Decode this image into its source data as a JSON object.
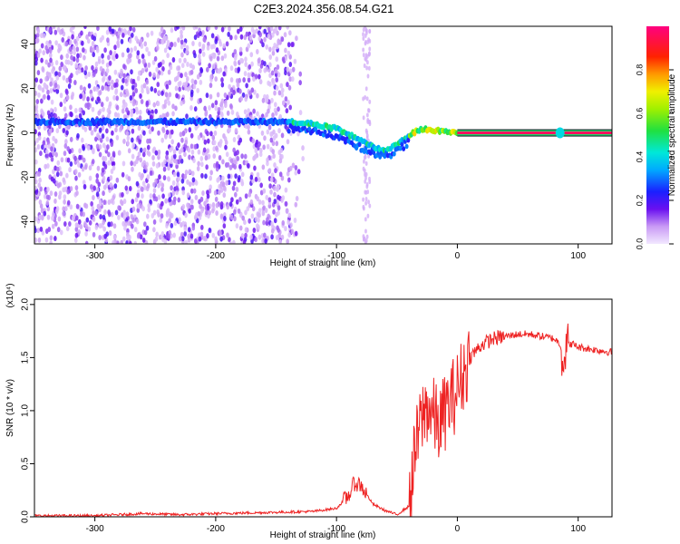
{
  "figure": {
    "title": "C2E3.2024.356.08.54.G21"
  },
  "chart_data": [
    {
      "type": "heatmap",
      "xlabel": "Height of straight line (km)",
      "ylabel": "Frequency (Hz)",
      "xlim": [
        -350,
        128
      ],
      "ylim": [
        -50,
        48
      ],
      "xticks": [
        -300,
        -200,
        -100,
        0,
        100
      ],
      "xtick_labels": [
        "-300",
        "-200",
        "-100",
        "0",
        "100"
      ],
      "yticks": [
        -40,
        -20,
        0,
        20,
        40
      ],
      "ytick_labels": [
        "-40",
        "-20",
        "0",
        "20",
        "40"
      ],
      "grid": false,
      "colorbar": {
        "label": "Normalized spectral amplitude",
        "range": [
          0,
          1
        ],
        "ticks": [
          0.0,
          0.2,
          0.4,
          0.6,
          0.8
        ],
        "tick_labels": [
          "0.0",
          "0.2",
          "0.4",
          "0.6",
          "0.8"
        ],
        "colormap": "rainbow (light purple → blue → cyan → green → yellow → red → magenta)"
      },
      "line_frequency_center": [
        {
          "x": -350,
          "y": 5
        },
        {
          "x": -200,
          "y": 5
        },
        {
          "x": -140,
          "y": 5
        },
        {
          "x": -120,
          "y": 4
        },
        {
          "x": -100,
          "y": 2
        },
        {
          "x": -85,
          "y": -2
        },
        {
          "x": -70,
          "y": -6
        },
        {
          "x": -60,
          "y": -8
        },
        {
          "x": -50,
          "y": -5
        },
        {
          "x": -40,
          "y": -1
        },
        {
          "x": -30,
          "y": 2
        },
        {
          "x": -20,
          "y": 1
        },
        {
          "x": -10,
          "y": 1
        },
        {
          "x": 0,
          "y": 0
        },
        {
          "x": 128,
          "y": 0
        }
      ],
      "annotations": {
        "tone_line_start_km": 0,
        "tone_line_end_km": 128,
        "tone_frequency_hz": 0,
        "noise_region_km": [
          -350,
          -130
        ],
        "faint_feature_km": -75
      }
    },
    {
      "type": "line",
      "xlabel": "Height of straight line (km)",
      "ylabel": "SNR (10 * v/v)",
      "y_multiplier": "(x10⁴)",
      "xlim": [
        -350,
        128
      ],
      "ylim": [
        0,
        2.05
      ],
      "xticks": [
        -300,
        -200,
        -100,
        0,
        100
      ],
      "xtick_labels": [
        "-300",
        "-200",
        "-100",
        "0",
        "100"
      ],
      "yticks": [
        0.0,
        0.5,
        1.0,
        1.5,
        2.0
      ],
      "ytick_labels": [
        "0.0",
        "0.5",
        "1.0",
        "1.5",
        "2.0"
      ],
      "grid": false,
      "color": "#ee2222",
      "series": [
        {
          "x": [
            -350,
            -300,
            -260,
            -230,
            -200,
            -160,
            -120,
            -100,
            -90,
            -85,
            -80,
            -70,
            -60,
            -50,
            -40,
            -35,
            -30,
            -25,
            -20,
            -15,
            -10,
            -5,
            0,
            10,
            20,
            30,
            40,
            50,
            60,
            70,
            80,
            85,
            88,
            90,
            95,
            100,
            110,
            128
          ],
          "y": [
            0.01,
            0.01,
            0.03,
            0.02,
            0.03,
            0.04,
            0.05,
            0.08,
            0.2,
            0.32,
            0.3,
            0.12,
            0.06,
            0.02,
            0.1,
            0.6,
            0.9,
            1.05,
            0.95,
            0.85,
            1.0,
            1.1,
            1.2,
            1.5,
            1.62,
            1.68,
            1.7,
            1.72,
            1.72,
            1.7,
            1.68,
            1.63,
            1.45,
            1.62,
            1.63,
            1.6,
            1.58,
            1.55
          ]
        }
      ]
    }
  ]
}
